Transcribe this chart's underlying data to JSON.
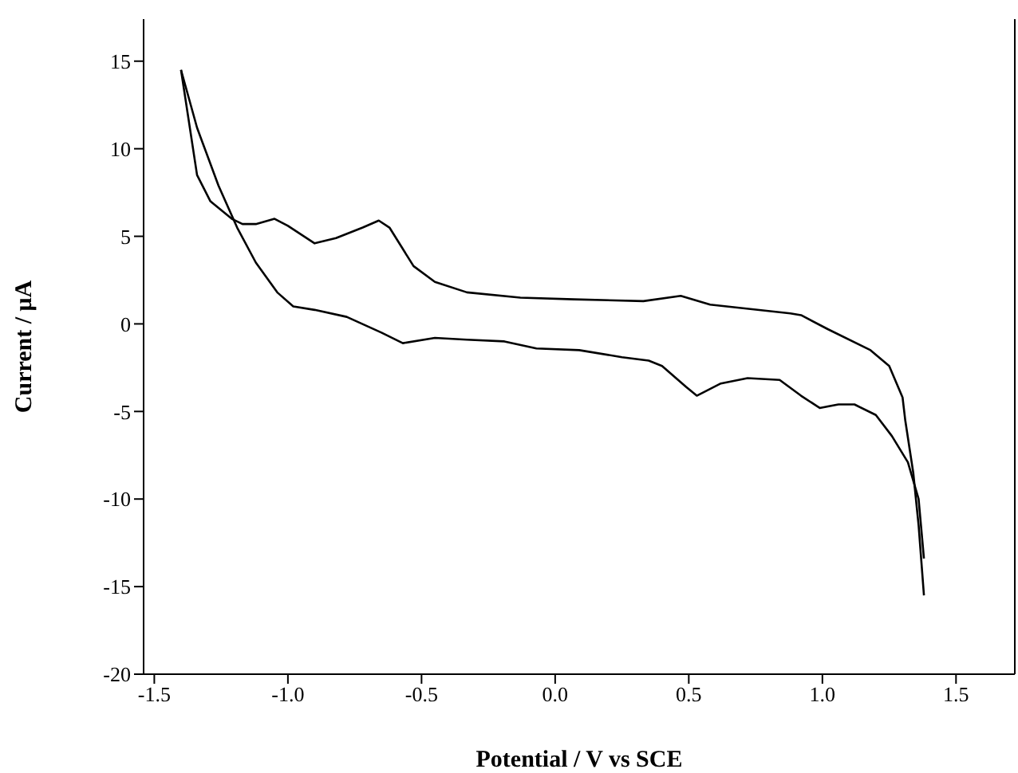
{
  "chart_data": {
    "type": "line",
    "xlabel": "Potential / V vs SCE",
    "ylabel": "Current / μA",
    "xlim": [
      -1.54,
      1.72
    ],
    "xticks": [
      {
        "value": -1.5,
        "label": "-1.5"
      },
      {
        "value": -1,
        "label": "-1.0"
      },
      {
        "value": -0.5,
        "label": "-0.5"
      },
      {
        "value": 0,
        "label": "0.0"
      },
      {
        "value": 0.5,
        "label": "0.5"
      },
      {
        "value": 1,
        "label": "1.0"
      },
      {
        "value": 1.5,
        "label": "1.5"
      }
    ],
    "ylim": [
      -20,
      17.4
    ],
    "yticks": [
      -20,
      -15,
      -10,
      -5,
      0,
      5,
      10,
      15
    ],
    "grid": false,
    "marker": "none",
    "line_style": "solid",
    "series": [
      {
        "color": "#000000",
        "x": [
          -1.4,
          -1.34,
          -1.29,
          -1.21,
          -1.17,
          -1.12,
          -1.05,
          -1.0,
          -0.9,
          -0.82,
          -0.72,
          -0.66,
          -0.62,
          -0.53,
          -0.45,
          -0.33,
          -0.13,
          0.07,
          0.33,
          0.47,
          0.58,
          0.88,
          0.92,
          1.02,
          1.18,
          1.25,
          1.3,
          1.31,
          1.34,
          1.36,
          1.38
        ],
        "values": [
          14.5,
          8.5,
          7.0,
          6.0,
          5.7,
          5.7,
          6.0,
          5.6,
          4.6,
          4.9,
          5.5,
          5.9,
          5.5,
          3.3,
          2.4,
          1.8,
          1.5,
          1.4,
          1.3,
          1.6,
          1.1,
          0.6,
          0.5,
          -0.3,
          -1.5,
          -2.4,
          -4.2,
          -5.5,
          -8.5,
          -11.5,
          -15.5
        ]
      },
      {
        "color": "#000000",
        "x": [
          1.38,
          1.36,
          1.32,
          1.26,
          1.2,
          1.12,
          1.06,
          0.99,
          0.92,
          0.84,
          0.72,
          0.62,
          0.53,
          0.49,
          0.4,
          0.35,
          0.25,
          0.09,
          -0.07,
          -0.19,
          -0.33,
          -0.45,
          -0.57,
          -0.65,
          -0.78,
          -0.9,
          -0.98,
          -1.04,
          -1.12,
          -1.19,
          -1.26,
          -1.34,
          -1.4
        ],
        "values": [
          -13.4,
          -10.0,
          -7.9,
          -6.4,
          -5.2,
          -4.6,
          -4.6,
          -4.8,
          -4.1,
          -3.2,
          -3.1,
          -3.4,
          -4.1,
          -3.6,
          -2.4,
          -2.1,
          -1.9,
          -1.5,
          -1.4,
          -1.0,
          -0.9,
          -0.8,
          -1.1,
          -0.5,
          0.4,
          0.8,
          1.0,
          1.8,
          3.5,
          5.5,
          7.9,
          11.2,
          14.5
        ]
      }
    ]
  }
}
